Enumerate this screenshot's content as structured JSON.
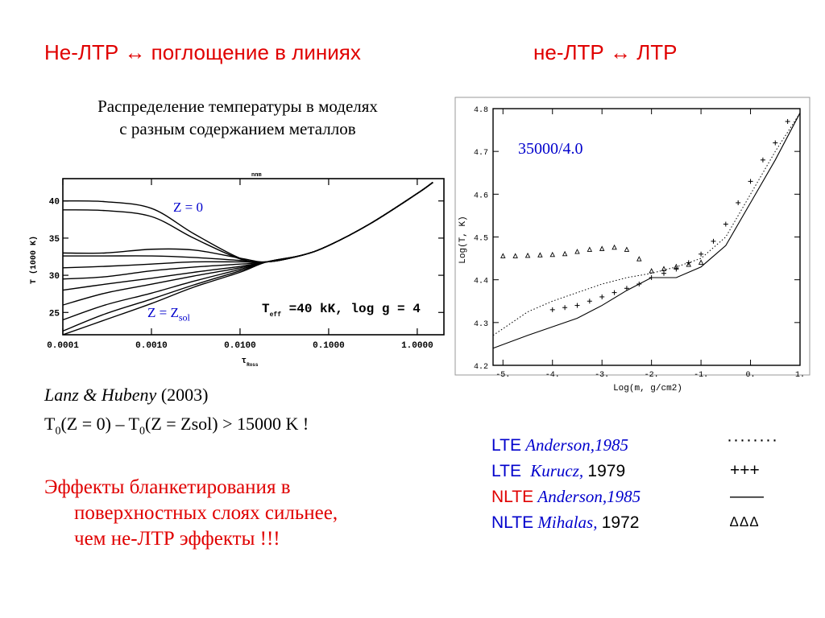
{
  "header": {
    "left_title": "Не-ЛТР ↔ поглощение в линиях",
    "right_title": "не-ЛТР ↔ ЛТР"
  },
  "left_panel": {
    "subtitle_line1": "Распределение температуры в моделях",
    "subtitle_line2": "с разным содержанием металлов",
    "citation_authors": "Lanz & Hubeny",
    "citation_year": "(2003)",
    "formula": {
      "t": "T",
      "sub0": "0",
      "part1": "(Z = 0) – T",
      "part2": "(Z = Zsol) > 15000 K !"
    },
    "conclusion_line1": "Эффекты бланкетирования в",
    "conclusion_line2": "поверхностных слоях сильнее,",
    "conclusion_line3": "чем не-ЛТР эффекты !!!"
  },
  "left_chart": {
    "label_z0": "Z = 0",
    "label_zsol_main": "Z = Z",
    "label_zsol_sub": "sol",
    "annotation": "T_eff =40 kK, log g = 4",
    "annotation_parts": {
      "t": "T",
      "sub": "eff",
      "rest": " =40 kK, log g = 4"
    },
    "ylabel": "T (1000 K)",
    "xlabel": "τ_Ross",
    "xlabel_parts": {
      "t": "τ",
      "sub": "Ross"
    },
    "top_label": "nnm",
    "y_ticks": [
      "25",
      "30",
      "35",
      "40"
    ],
    "x_ticks": [
      "0.0001",
      "0.0010",
      "0.0100",
      "0.1000",
      "1.0000"
    ]
  },
  "right_chart": {
    "model_label": "35000/4.0",
    "ylabel": "Log(T, K)",
    "xlabel": "Log(m, g/cm2)",
    "y_ticks": [
      "4.2",
      "4.3",
      "4.4",
      "4.5",
      "4.6",
      "4.7",
      "4.8"
    ],
    "x_ticks": [
      "-5.",
      "-4.",
      "-3.",
      "-2.",
      "-1.",
      "0.",
      "1."
    ]
  },
  "legend": [
    {
      "type": "LTE",
      "source": "Anderson,1985",
      "year": "",
      "marker": "········"
    },
    {
      "type": "LTE",
      "source": "Kurucz,",
      "year": "1979",
      "marker": "+++"
    },
    {
      "type": "NLTE",
      "source": "Anderson,1985",
      "year": "",
      "marker": "——"
    },
    {
      "type": "NLTE",
      "source": "Mihalas,",
      "year": "1972",
      "marker": "∆∆∆"
    }
  ],
  "colors": {
    "title_red": "#e00000",
    "legend_blue": "#0000cc",
    "plot_ink": "#000000"
  },
  "chart_data": [
    {
      "type": "line",
      "title": "",
      "xlabel": "τ_Ross",
      "ylabel": "T (1000 K)",
      "xscale": "log",
      "xlim": [
        0.0001,
        2.0
      ],
      "ylim": [
        22,
        43
      ],
      "grid": false,
      "legend": "none",
      "annotations": [
        "Z = 0",
        "Z = Z_sol",
        "T_eff =40 kK, log g = 4"
      ],
      "series": [
        {
          "x": [
            0.0001,
            0.0003,
            0.001,
            0.003,
            0.01,
            0.02,
            0.05,
            0.1,
            0.3,
            1.0,
            1.5
          ],
          "values": [
            40.0,
            39.9,
            39.0,
            35.6,
            32.3,
            31.8,
            32.7,
            34.0,
            37.0,
            41.0,
            42.5
          ]
        },
        {
          "x": [
            0.0001,
            0.0003,
            0.001,
            0.003,
            0.01,
            0.02,
            0.05,
            0.1,
            0.3,
            1.0,
            1.5
          ],
          "values": [
            38.8,
            38.7,
            37.9,
            35.0,
            32.2,
            31.8,
            32.7,
            34.0,
            37.0,
            41.0,
            42.5
          ]
        },
        {
          "x": [
            0.0001,
            0.0003,
            0.001,
            0.003,
            0.01,
            0.02,
            0.05,
            0.1,
            0.3,
            1.0,
            1.5
          ],
          "values": [
            33.0,
            33.0,
            33.5,
            33.4,
            32.3,
            31.8,
            32.7,
            34.0,
            37.0,
            41.0,
            42.5
          ]
        },
        {
          "x": [
            0.0001,
            0.0003,
            0.001,
            0.003,
            0.01,
            0.02,
            0.05,
            0.1,
            0.3,
            1.0,
            1.5
          ],
          "values": [
            32.6,
            32.6,
            32.6,
            32.4,
            32.0,
            31.8,
            32.7,
            34.0,
            37.0,
            41.0,
            42.5
          ]
        },
        {
          "x": [
            0.0001,
            0.0003,
            0.001,
            0.003,
            0.01,
            0.02,
            0.05,
            0.1,
            0.3,
            1.0,
            1.5
          ],
          "values": [
            31.0,
            31.2,
            31.5,
            31.8,
            31.8,
            31.8,
            32.7,
            34.0,
            37.0,
            41.0,
            42.5
          ]
        },
        {
          "x": [
            0.0001,
            0.0003,
            0.001,
            0.003,
            0.01,
            0.02,
            0.05,
            0.1,
            0.3,
            1.0,
            1.5
          ],
          "values": [
            29.5,
            29.8,
            30.6,
            31.1,
            31.5,
            31.8,
            32.7,
            34.0,
            37.0,
            41.0,
            42.5
          ]
        },
        {
          "x": [
            0.0001,
            0.0003,
            0.001,
            0.003,
            0.01,
            0.02,
            0.05,
            0.1,
            0.3,
            1.0,
            1.5
          ],
          "values": [
            28.0,
            28.8,
            29.6,
            30.4,
            31.2,
            31.8,
            32.7,
            34.0,
            37.0,
            41.0,
            42.5
          ]
        },
        {
          "x": [
            0.0001,
            0.0003,
            0.001,
            0.003,
            0.01,
            0.02,
            0.05,
            0.1,
            0.3,
            1.0,
            1.5
          ],
          "values": [
            26.0,
            27.6,
            28.8,
            29.9,
            31.0,
            31.8,
            32.7,
            34.0,
            37.0,
            41.0,
            42.5
          ]
        },
        {
          "x": [
            0.0001,
            0.0003,
            0.001,
            0.003,
            0.01,
            0.02,
            0.05,
            0.1,
            0.3,
            1.0,
            1.5
          ],
          "values": [
            24.0,
            26.0,
            27.6,
            29.2,
            30.8,
            31.8,
            32.7,
            34.0,
            37.0,
            41.0,
            42.5
          ]
        },
        {
          "x": [
            0.0001,
            0.0003,
            0.001,
            0.003,
            0.01,
            0.02,
            0.05,
            0.1,
            0.3,
            1.0,
            1.5
          ],
          "values": [
            22.5,
            24.8,
            26.8,
            28.7,
            30.6,
            31.8,
            32.7,
            34.0,
            37.0,
            41.0,
            42.5
          ]
        },
        {
          "x": [
            0.0001,
            0.0003,
            0.001,
            0.003,
            0.01,
            0.02,
            0.05,
            0.1,
            0.3,
            1.0,
            1.5
          ],
          "values": [
            22.0,
            24.0,
            26.2,
            28.4,
            30.4,
            31.8,
            32.7,
            34.0,
            37.0,
            41.0,
            42.5
          ]
        }
      ]
    },
    {
      "type": "line",
      "title": "",
      "xlabel": "Log(m, g/cm2)",
      "ylabel": "Log(T, K)",
      "xlim": [
        -5.2,
        1.0
      ],
      "ylim": [
        4.2,
        4.8
      ],
      "grid": false,
      "legend": "below",
      "annotations": [
        "35000/4.0"
      ],
      "series": [
        {
          "name": "LTE Anderson,1985",
          "style": "dotted",
          "x": [
            -5.2,
            -4.5,
            -4.0,
            -3.5,
            -3.0,
            -2.5,
            -2.0,
            -1.5,
            -1.0,
            -0.5,
            0.0,
            0.5,
            1.0
          ],
          "values": [
            4.27,
            4.325,
            4.35,
            4.37,
            4.39,
            4.405,
            4.415,
            4.43,
            4.45,
            4.5,
            4.6,
            4.7,
            4.79
          ]
        },
        {
          "name": "LTE Kurucz, 1979",
          "style": "plus",
          "x": [
            -4.0,
            -3.75,
            -3.5,
            -3.25,
            -3.0,
            -2.75,
            -2.5,
            -2.25,
            -2.0,
            -1.75,
            -1.5,
            -1.25,
            -1.0,
            -0.75,
            -0.5,
            -0.25,
            0.0,
            0.25,
            0.5,
            0.75
          ],
          "values": [
            4.33,
            4.335,
            4.34,
            4.35,
            4.36,
            4.37,
            4.38,
            4.39,
            4.405,
            4.415,
            4.425,
            4.44,
            4.46,
            4.49,
            4.53,
            4.58,
            4.63,
            4.68,
            4.72,
            4.77
          ]
        },
        {
          "name": "NLTE Anderson,1985",
          "style": "solid",
          "x": [
            -5.2,
            -4.5,
            -4.0,
            -3.5,
            -3.0,
            -2.5,
            -2.0,
            -1.5,
            -1.0,
            -0.5,
            0.0,
            0.5,
            1.0
          ],
          "values": [
            4.24,
            4.27,
            4.29,
            4.31,
            4.34,
            4.375,
            4.405,
            4.405,
            4.43,
            4.48,
            4.58,
            4.68,
            4.79
          ]
        },
        {
          "name": "NLTE Mihalas, 1972",
          "style": "triangle",
          "x": [
            -5.0,
            -4.75,
            -4.5,
            -4.25,
            -4.0,
            -3.75,
            -3.5,
            -3.25,
            -3.0,
            -2.75,
            -2.5,
            -2.25,
            -2.0,
            -1.75,
            -1.5,
            -1.25,
            -1.0
          ],
          "values": [
            4.455,
            4.455,
            4.456,
            4.457,
            4.458,
            4.46,
            4.465,
            4.47,
            4.472,
            4.475,
            4.47,
            4.448,
            4.42,
            4.425,
            4.43,
            4.435,
            4.44
          ]
        }
      ]
    }
  ]
}
